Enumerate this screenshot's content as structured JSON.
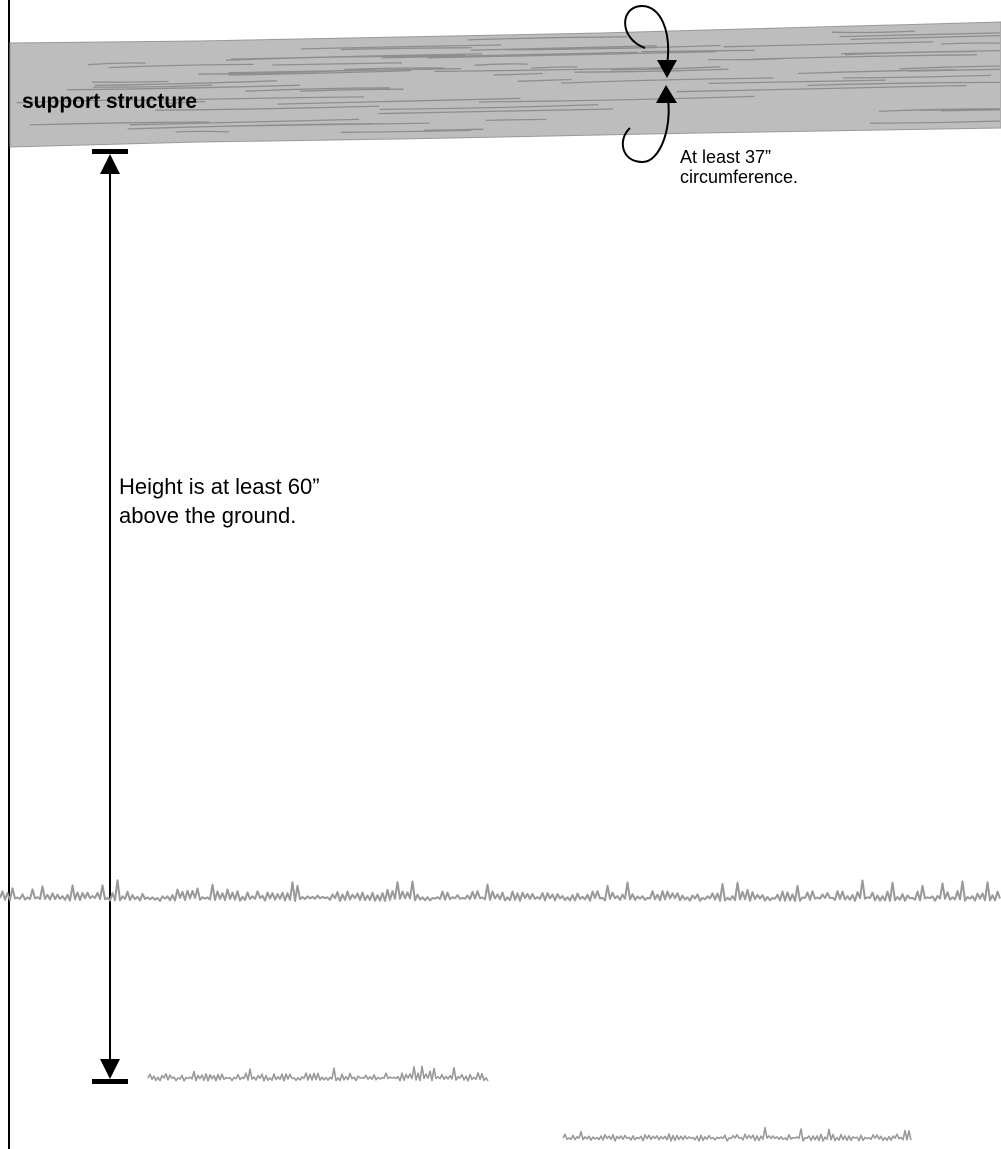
{
  "beam": {
    "label": "support structure"
  },
  "circumference": {
    "line1": "At least 37”",
    "line2": "circumference."
  },
  "height": {
    "line1": "Height is at least 60”",
    "line2": "above the ground."
  },
  "colors": {
    "wood": "#b9b9b9",
    "wood_grain": "#8a8a8a",
    "grass": "#999999",
    "line": "#000000",
    "background": "#ffffff"
  }
}
